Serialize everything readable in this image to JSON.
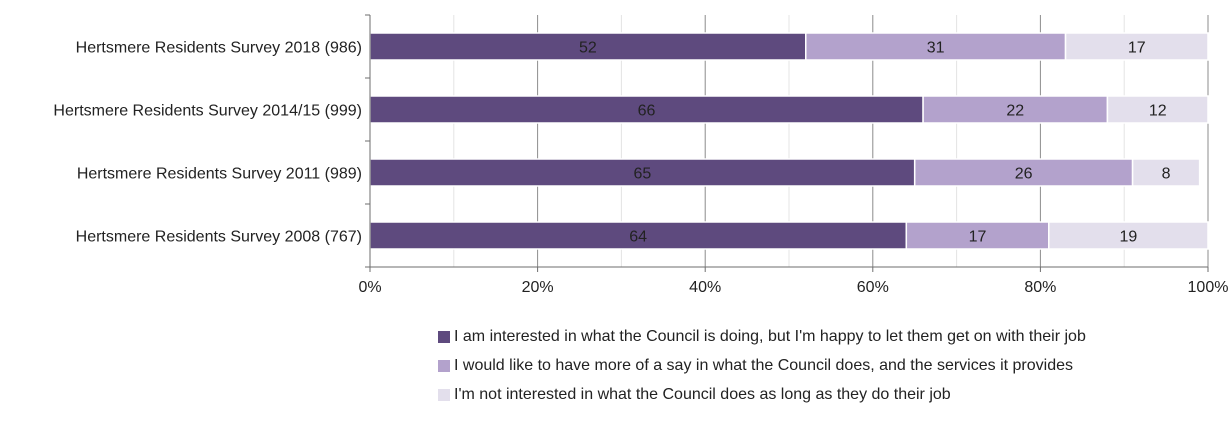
{
  "chart_data": {
    "type": "bar",
    "orientation": "horizontal",
    "stacked": true,
    "percent_axis": true,
    "categories": [
      "Hertsmere Residents Survey 2018 (986)",
      "Hertsmere Residents Survey 2014/15 (999)",
      "Hertsmere Residents Survey 2011 (989)",
      "Hertsmere Residents Survey 2008 (767)"
    ],
    "series": [
      {
        "name": "I am interested in what the Council is doing, but I'm happy to let them get on with their job",
        "values": [
          52,
          66,
          65,
          64
        ],
        "color": "#5e4a7e"
      },
      {
        "name": "I would like to have more of a say in what the Council does, and the services it provides",
        "values": [
          31,
          22,
          26,
          17
        ],
        "color": "#b3a2cc"
      },
      {
        "name": "I'm not interested in what the Council does as long as they do their job",
        "values": [
          17,
          12,
          8,
          19
        ],
        "color": "#e3dfec"
      }
    ],
    "xlim": [
      0,
      100
    ],
    "xticks": [
      "0%",
      "20%",
      "40%",
      "60%",
      "80%",
      "100%"
    ],
    "title": "",
    "xlabel": "",
    "ylabel": "",
    "grid": true,
    "legend_position": "bottom"
  }
}
